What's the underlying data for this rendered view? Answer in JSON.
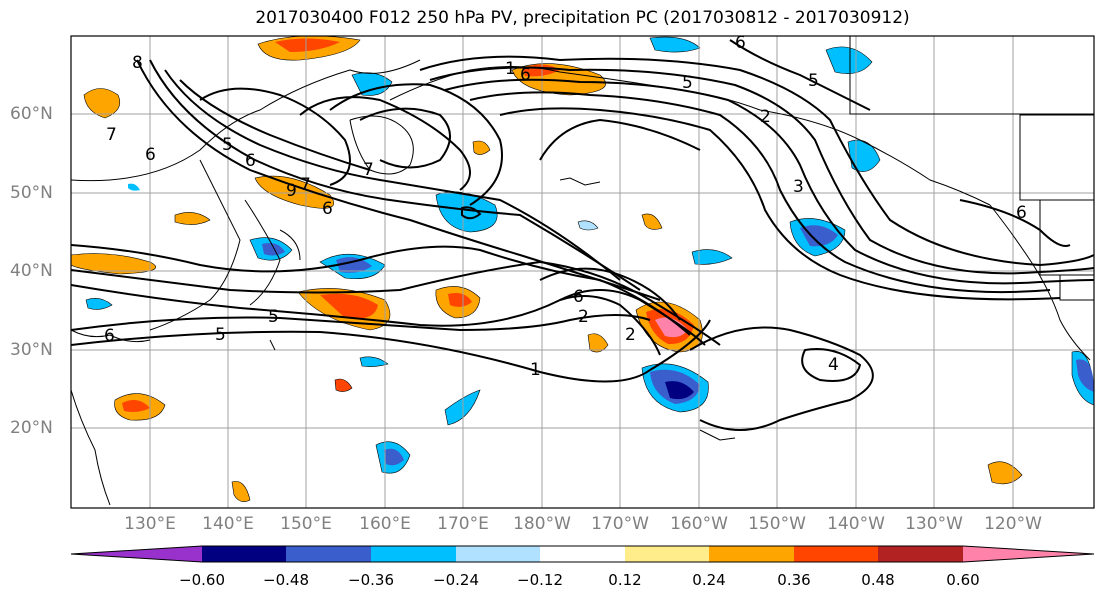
{
  "title": "2017030400 F012 250 hPa PV, precipitation PC (2017030812 - 2017030912)",
  "lat_labels": [
    "60°N",
    "50°N",
    "40°N",
    "30°N",
    "20°N"
  ],
  "lon_labels": [
    "130°E",
    "140°E",
    "150°E",
    "160°E",
    "170°E",
    "180°W",
    "170°W",
    "160°W",
    "150°W",
    "140°W",
    "130°W",
    "120°W"
  ],
  "contour_labels": [
    "8",
    "7",
    "6",
    "5",
    "6",
    "9",
    "6",
    "7",
    "1",
    "6",
    "7",
    "5",
    "6",
    "5",
    "2",
    "3",
    "5",
    "6",
    "5",
    "6",
    "2",
    "2",
    "1",
    "4",
    "6"
  ],
  "colorbar": {
    "tick_labels": [
      "−0.60",
      "−0.48",
      "−0.36",
      "−0.24",
      "−0.12",
      "0.12",
      "0.24",
      "0.36",
      "0.48",
      "0.60"
    ],
    "colors": [
      "#9932cc",
      "#000080",
      "#3a5fcd",
      "#00bfff",
      "#b0e2ff",
      "#ffffff",
      "#ffec8b",
      "#ffa500",
      "#ff4500",
      "#b22222",
      "#ff82ab"
    ]
  }
}
